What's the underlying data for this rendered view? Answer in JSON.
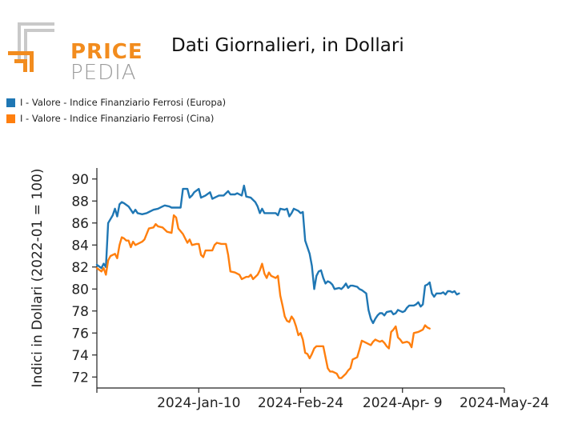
{
  "logo": {
    "word1": "PRICE",
    "word2": "PEDIA"
  },
  "chart_data": {
    "type": "line",
    "title": "Dati Giornalieri, in Dollari",
    "ylabel": "Indici in Dollari (2022-01 = 100)",
    "xlabel": "",
    "ylim": [
      71,
      91
    ],
    "yticks": [
      72,
      74,
      76,
      78,
      80,
      82,
      84,
      86,
      88,
      90
    ],
    "x_ticks": [
      "2024-Jan-10",
      "2024-Feb-24",
      "2024-Apr- 9",
      "2024-May-24"
    ],
    "x_start": "2023-Nov-26",
    "x_end": "2024-May-24",
    "grid": false,
    "legend_position": "top-left",
    "series": [
      {
        "name": "I - Valore - Indice Finanziario Ferrosi (Europa)",
        "color": "#1f77b4",
        "points": [
          [
            0,
            82.2
          ],
          [
            2,
            81.9
          ],
          [
            3,
            82.3
          ],
          [
            4,
            82.0
          ],
          [
            5,
            86.0
          ],
          [
            7,
            86.7
          ],
          [
            8,
            87.3
          ],
          [
            9,
            86.6
          ],
          [
            10,
            87.7
          ],
          [
            11,
            87.9
          ],
          [
            12,
            87.8
          ],
          [
            14,
            87.5
          ],
          [
            15,
            87.2
          ],
          [
            16,
            86.9
          ],
          [
            17,
            87.2
          ],
          [
            18,
            86.9
          ],
          [
            20,
            86.8
          ],
          [
            22,
            86.9
          ],
          [
            23,
            87.0
          ],
          [
            25,
            87.2
          ],
          [
            27,
            87.3
          ],
          [
            29,
            87.5
          ],
          [
            30,
            87.6
          ],
          [
            32,
            87.5
          ],
          [
            33,
            87.4
          ],
          [
            35,
            87.4
          ],
          [
            37,
            87.4
          ],
          [
            38,
            89.1
          ],
          [
            40,
            89.1
          ],
          [
            41,
            88.3
          ],
          [
            42,
            88.5
          ],
          [
            43,
            88.8
          ],
          [
            45,
            89.1
          ],
          [
            46,
            88.3
          ],
          [
            48,
            88.5
          ],
          [
            50,
            88.8
          ],
          [
            51,
            88.2
          ],
          [
            53,
            88.4
          ],
          [
            54,
            88.5
          ],
          [
            56,
            88.5
          ],
          [
            58,
            88.9
          ],
          [
            59,
            88.6
          ],
          [
            61,
            88.6
          ],
          [
            62,
            88.7
          ],
          [
            64,
            88.5
          ],
          [
            65,
            89.4
          ],
          [
            66,
            88.4
          ],
          [
            68,
            88.3
          ],
          [
            70,
            87.9
          ],
          [
            71,
            87.5
          ],
          [
            72,
            86.9
          ],
          [
            73,
            87.3
          ],
          [
            74,
            86.9
          ],
          [
            76,
            86.9
          ],
          [
            78,
            86.9
          ],
          [
            79,
            86.9
          ],
          [
            80,
            86.7
          ],
          [
            81,
            87.3
          ],
          [
            83,
            87.2
          ],
          [
            84,
            87.3
          ],
          [
            85,
            86.6
          ],
          [
            86,
            86.9
          ],
          [
            87,
            87.3
          ],
          [
            89,
            87.1
          ],
          [
            90,
            86.9
          ],
          [
            91,
            87.0
          ],
          [
            92,
            84.4
          ],
          [
            94,
            83.2
          ],
          [
            95,
            82.1
          ],
          [
            96,
            80.0
          ],
          [
            97,
            81.2
          ],
          [
            98,
            81.6
          ],
          [
            99,
            81.7
          ],
          [
            100,
            81.0
          ],
          [
            101,
            80.5
          ],
          [
            102,
            80.7
          ],
          [
            103,
            80.6
          ],
          [
            104,
            80.4
          ],
          [
            105,
            80.0
          ],
          [
            107,
            80.1
          ],
          [
            108,
            80.0
          ],
          [
            109,
            80.2
          ],
          [
            110,
            80.5
          ],
          [
            111,
            80.1
          ],
          [
            112,
            80.3
          ],
          [
            113,
            80.3
          ],
          [
            115,
            80.2
          ],
          [
            116,
            80.0
          ],
          [
            117,
            79.9
          ],
          [
            119,
            79.6
          ],
          [
            120,
            78.1
          ],
          [
            121,
            77.3
          ],
          [
            122,
            76.9
          ],
          [
            123,
            77.3
          ],
          [
            124,
            77.6
          ],
          [
            125,
            77.8
          ],
          [
            126,
            77.8
          ],
          [
            127,
            77.6
          ],
          [
            128,
            77.9
          ],
          [
            130,
            78.0
          ],
          [
            131,
            77.7
          ],
          [
            132,
            77.8
          ],
          [
            133,
            78.1
          ],
          [
            135,
            77.9
          ],
          [
            136,
            78.0
          ],
          [
            137,
            78.3
          ],
          [
            138,
            78.5
          ],
          [
            140,
            78.5
          ],
          [
            141,
            78.6
          ],
          [
            142,
            78.8
          ],
          [
            143,
            78.4
          ],
          [
            144,
            78.6
          ],
          [
            145,
            80.3
          ],
          [
            146,
            80.4
          ],
          [
            147,
            80.6
          ],
          [
            148,
            79.6
          ],
          [
            149,
            79.3
          ],
          [
            150,
            79.6
          ],
          [
            152,
            79.6
          ],
          [
            153,
            79.7
          ],
          [
            154,
            79.5
          ],
          [
            155,
            79.8
          ],
          [
            156,
            79.8
          ],
          [
            157,
            79.7
          ],
          [
            158,
            79.8
          ],
          [
            159,
            79.5
          ],
          [
            160,
            79.6
          ]
        ]
      },
      {
        "name": "I - Valore - Indice Finanziario Ferrosi (Cina)",
        "color": "#ff7f0e",
        "points": [
          [
            0,
            81.9
          ],
          [
            2,
            81.6
          ],
          [
            3,
            81.9
          ],
          [
            4,
            81.3
          ],
          [
            5,
            82.6
          ],
          [
            6,
            83.0
          ],
          [
            8,
            83.2
          ],
          [
            9,
            82.8
          ],
          [
            10,
            84.0
          ],
          [
            11,
            84.7
          ],
          [
            12,
            84.6
          ],
          [
            13,
            84.4
          ],
          [
            14,
            84.4
          ],
          [
            15,
            83.8
          ],
          [
            16,
            84.3
          ],
          [
            17,
            84.0
          ],
          [
            18,
            84.1
          ],
          [
            20,
            84.3
          ],
          [
            21,
            84.5
          ],
          [
            23,
            85.5
          ],
          [
            25,
            85.6
          ],
          [
            26,
            85.9
          ],
          [
            27,
            85.7
          ],
          [
            29,
            85.6
          ],
          [
            31,
            85.2
          ],
          [
            33,
            85.1
          ],
          [
            34,
            86.7
          ],
          [
            35,
            86.5
          ],
          [
            36,
            85.5
          ],
          [
            38,
            85.0
          ],
          [
            39,
            84.6
          ],
          [
            40,
            84.2
          ],
          [
            41,
            84.5
          ],
          [
            42,
            84.0
          ],
          [
            44,
            84.1
          ],
          [
            45,
            84.1
          ],
          [
            46,
            83.1
          ],
          [
            47,
            82.9
          ],
          [
            48,
            83.5
          ],
          [
            50,
            83.5
          ],
          [
            51,
            83.5
          ],
          [
            52,
            84.0
          ],
          [
            53,
            84.2
          ],
          [
            55,
            84.1
          ],
          [
            57,
            84.1
          ],
          [
            58,
            83.1
          ],
          [
            59,
            81.6
          ],
          [
            61,
            81.5
          ],
          [
            63,
            81.3
          ],
          [
            64,
            80.9
          ],
          [
            66,
            81.1
          ],
          [
            67,
            81.1
          ],
          [
            68,
            81.3
          ],
          [
            69,
            80.9
          ],
          [
            71,
            81.3
          ],
          [
            72,
            81.7
          ],
          [
            73,
            82.3
          ],
          [
            74,
            81.4
          ],
          [
            75,
            81.0
          ],
          [
            76,
            81.5
          ],
          [
            77,
            81.2
          ],
          [
            79,
            81.0
          ],
          [
            80,
            81.2
          ],
          [
            81,
            79.4
          ],
          [
            82,
            78.5
          ],
          [
            83,
            77.5
          ],
          [
            84,
            77.1
          ],
          [
            85,
            77.0
          ],
          [
            86,
            77.5
          ],
          [
            87,
            77.2
          ],
          [
            88,
            76.6
          ],
          [
            89,
            75.8
          ],
          [
            90,
            76.0
          ],
          [
            91,
            75.4
          ],
          [
            92,
            74.2
          ],
          [
            93,
            74.1
          ],
          [
            94,
            73.7
          ],
          [
            95,
            74.1
          ],
          [
            96,
            74.6
          ],
          [
            97,
            74.8
          ],
          [
            99,
            74.8
          ],
          [
            100,
            74.8
          ],
          [
            101,
            73.8
          ],
          [
            102,
            72.8
          ],
          [
            103,
            72.5
          ],
          [
            104,
            72.5
          ],
          [
            105,
            72.4
          ],
          [
            106,
            72.3
          ],
          [
            107,
            71.9
          ],
          [
            108,
            71.9
          ],
          [
            109,
            72.1
          ],
          [
            110,
            72.3
          ],
          [
            111,
            72.6
          ],
          [
            112,
            72.8
          ],
          [
            113,
            73.6
          ],
          [
            114,
            73.7
          ],
          [
            115,
            73.8
          ],
          [
            116,
            74.5
          ],
          [
            117,
            75.3
          ],
          [
            118,
            75.2
          ],
          [
            119,
            75.1
          ],
          [
            121,
            74.9
          ],
          [
            122,
            75.2
          ],
          [
            123,
            75.4
          ],
          [
            124,
            75.3
          ],
          [
            125,
            75.2
          ],
          [
            126,
            75.3
          ],
          [
            127,
            75.1
          ],
          [
            128,
            74.8
          ],
          [
            129,
            74.6
          ],
          [
            130,
            76.1
          ],
          [
            131,
            76.3
          ],
          [
            132,
            76.6
          ],
          [
            133,
            75.6
          ],
          [
            134,
            75.4
          ],
          [
            135,
            75.1
          ],
          [
            137,
            75.2
          ],
          [
            138,
            75.1
          ],
          [
            139,
            74.7
          ],
          [
            140,
            76.0
          ],
          [
            142,
            76.1
          ],
          [
            143,
            76.2
          ],
          [
            144,
            76.3
          ],
          [
            145,
            76.7
          ],
          [
            146,
            76.5
          ],
          [
            147,
            76.4
          ]
        ]
      }
    ]
  }
}
